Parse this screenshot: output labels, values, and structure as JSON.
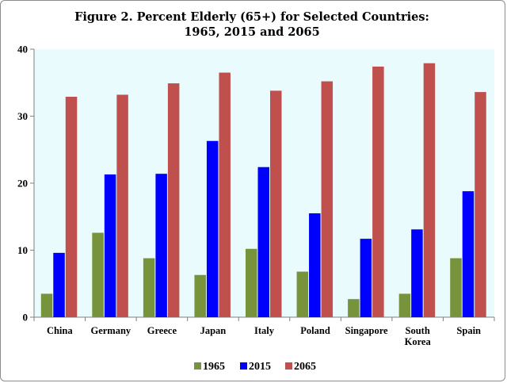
{
  "chart_data": {
    "type": "bar",
    "title_lines": [
      "Figure 2. Percent Elderly (65+) for Selected Countries:",
      "1965, 2015 and 2065"
    ],
    "categories": [
      [
        "China"
      ],
      [
        "Germany"
      ],
      [
        "Greece"
      ],
      [
        "Japan"
      ],
      [
        "Italy"
      ],
      [
        "Poland"
      ],
      [
        "Singapore"
      ],
      [
        "South",
        "Korea"
      ],
      [
        "Spain"
      ]
    ],
    "series": [
      {
        "name": "1965",
        "color": "#77933C",
        "values": [
          3.5,
          12.6,
          8.8,
          6.3,
          10.2,
          6.8,
          2.7,
          3.5,
          8.8
        ]
      },
      {
        "name": "2015",
        "color": "#0000FF",
        "values": [
          9.6,
          21.3,
          21.4,
          26.3,
          22.4,
          15.5,
          11.7,
          13.1,
          18.8
        ]
      },
      {
        "name": "2065",
        "color": "#C0504D",
        "values": [
          32.9,
          33.2,
          34.9,
          36.5,
          33.8,
          35.2,
          37.4,
          37.9,
          33.6
        ]
      }
    ],
    "ylim": [
      0,
      40
    ],
    "yticks": [
      "0",
      "10",
      "20",
      "30",
      "40"
    ],
    "xlabel": "",
    "ylabel": "",
    "grid": false,
    "legend_position": "bottom",
    "plot_background": "#E9FBFC"
  }
}
